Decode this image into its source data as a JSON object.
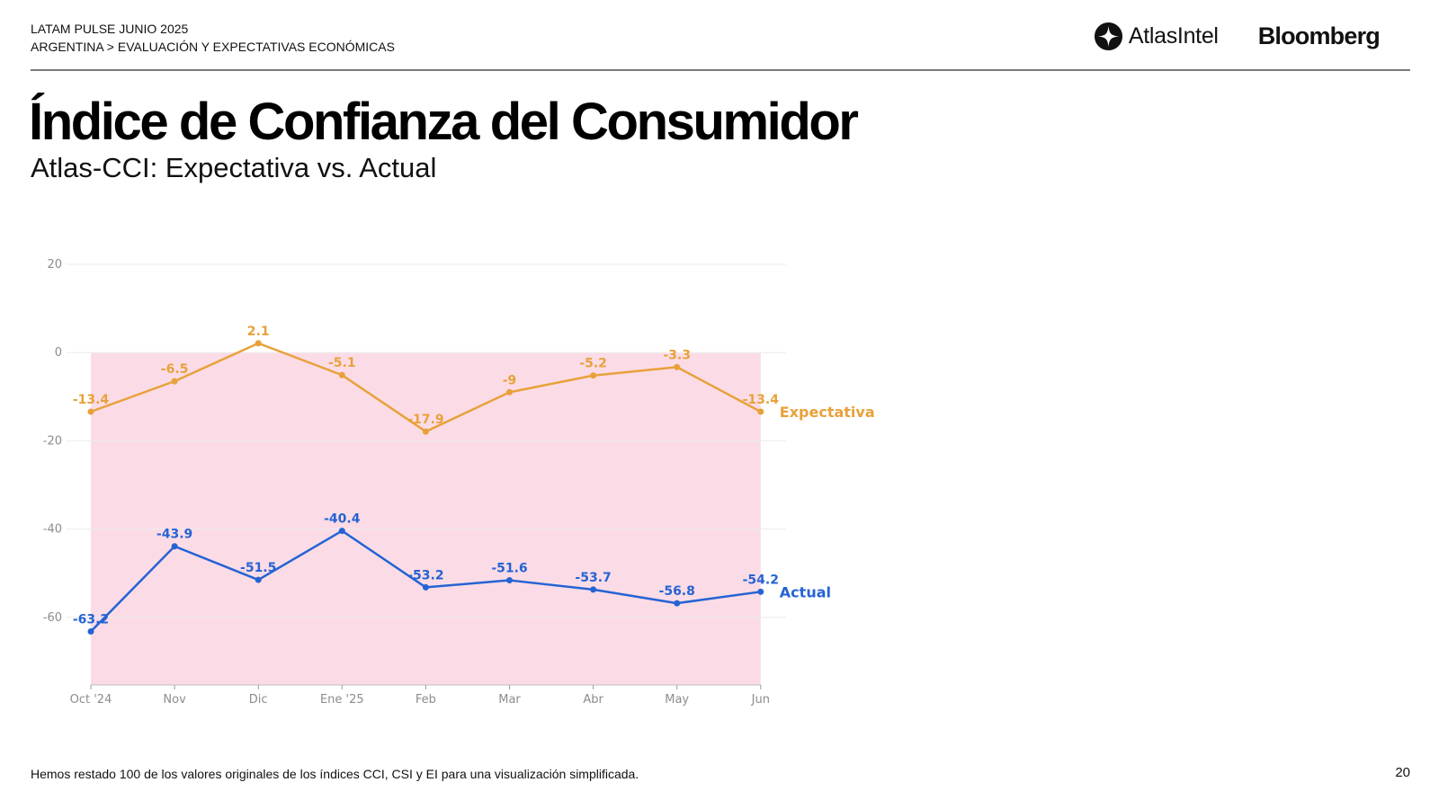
{
  "header": {
    "line1": "LATAM PULSE JUNIO 2025",
    "line2": "ARGENTINA > EVALUACIÓN Y EXPECTATIVAS ECONÓMICAS"
  },
  "logos": {
    "atlas": "AtlasIntel",
    "bloomberg": "Bloomberg"
  },
  "page_title": "Índice de Confianza del Consumidor",
  "page_subtitle": "Atlas-CCI: Expectativa vs. Actual",
  "footnote": "Hemos restado 100 de los valores originales de los índices CCI, CSI y EI para una visualización simplificada.",
  "page_number": "20",
  "colors": {
    "expectativa": "#E8A13A",
    "actual": "#2563D4",
    "shade": "#FBDCE6",
    "grid": "#EBEBEB"
  },
  "chart_data": {
    "type": "line",
    "categories": [
      "Oct '24",
      "Nov",
      "Dic",
      "Ene '25",
      "Feb",
      "Mar",
      "Abr",
      "May",
      "Jun"
    ],
    "series": [
      {
        "name": "Expectativa",
        "values": [
          -13.4,
          -6.5,
          2.1,
          -5.1,
          -17.9,
          -9,
          -5.2,
          -3.3,
          -13.4
        ]
      },
      {
        "name": "Actual",
        "values": [
          -63.2,
          -43.9,
          -51.5,
          -40.4,
          -53.2,
          -51.6,
          -53.7,
          -56.8,
          -54.2
        ]
      }
    ],
    "yticks": [
      20,
      0,
      -20,
      -40,
      -60
    ],
    "ylim": [
      -75,
      20
    ],
    "shaded_region": {
      "from": "Oct '24",
      "to": "Jun",
      "ymax": 0
    },
    "grid": true,
    "legend": "series labels at line end (right)"
  }
}
